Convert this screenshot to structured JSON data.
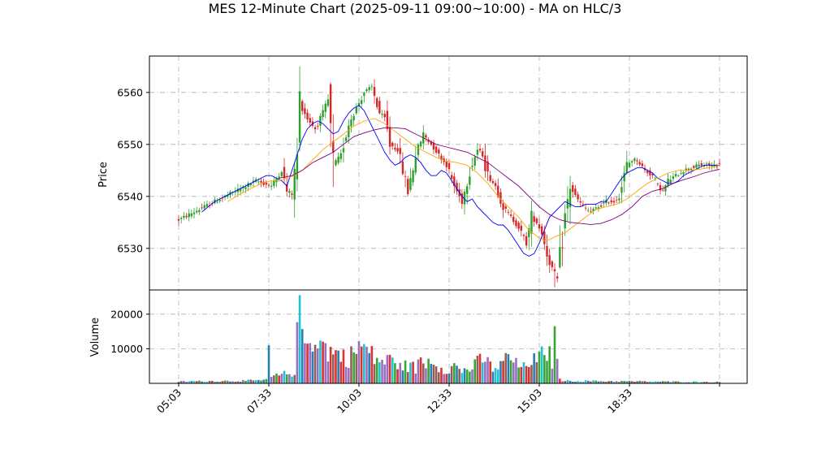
{
  "chart_data": {
    "type": "candlestick",
    "title": "MES 12-Minute Chart (2025-09-11 09:00~10:00) - MA on HLC/3",
    "panels": [
      {
        "name": "price",
        "ylabel": "Price",
        "ylim": [
          6522,
          6567
        ],
        "yticks": [
          6530,
          6540,
          6550,
          6560
        ]
      },
      {
        "name": "volume",
        "ylabel": "Volume",
        "ylim": [
          0,
          27000
        ],
        "yticks": [
          10000,
          20000
        ]
      }
    ],
    "xticks": [
      "05:03",
      "07:33",
      "10:03",
      "12:33",
      "15:03",
      "18:33"
    ],
    "grid": true,
    "colors": {
      "up": "#2ca02c",
      "down": "#d62728",
      "ma_fast": "#0000ff",
      "ma_mid": "#ffa500",
      "ma_slow": "#800080"
    },
    "price_path": [
      [
        0,
        6535.5
      ],
      [
        6,
        6537
      ],
      [
        12,
        6538.5
      ],
      [
        18,
        6540
      ],
      [
        24,
        6541.5
      ],
      [
        30,
        6543
      ],
      [
        36,
        6542
      ],
      [
        40,
        6545
      ],
      [
        42,
        6541
      ],
      [
        44,
        6540.5
      ],
      [
        46,
        6548
      ],
      [
        47,
        6558
      ],
      [
        50,
        6555
      ],
      [
        53,
        6553
      ],
      [
        56,
        6556
      ],
      [
        58,
        6558.5
      ],
      [
        60,
        6546
      ],
      [
        63,
        6548
      ],
      [
        66,
        6554
      ],
      [
        69,
        6557
      ],
      [
        72,
        6560
      ],
      [
        75,
        6561
      ],
      [
        78,
        6556
      ],
      [
        80,
        6555
      ],
      [
        82,
        6550
      ],
      [
        85,
        6549
      ],
      [
        87,
        6545
      ],
      [
        89,
        6541
      ],
      [
        92,
        6548
      ],
      [
        95,
        6552
      ],
      [
        98,
        6550
      ],
      [
        101,
        6548
      ],
      [
        104,
        6546
      ],
      [
        107,
        6542
      ],
      [
        110,
        6539
      ],
      [
        113,
        6545
      ],
      [
        116,
        6549
      ],
      [
        118,
        6548
      ],
      [
        120,
        6544
      ],
      [
        123,
        6542
      ],
      [
        126,
        6538
      ],
      [
        129,
        6536
      ],
      [
        132,
        6534
      ],
      [
        135,
        6531
      ],
      [
        137,
        6536
      ],
      [
        139,
        6535
      ],
      [
        141,
        6533
      ],
      [
        143,
        6529
      ],
      [
        145,
        6526
      ],
      [
        147,
        6524
      ],
      [
        148,
        6528
      ],
      [
        150,
        6536
      ],
      [
        152,
        6542
      ],
      [
        154,
        6540
      ],
      [
        157,
        6538
      ],
      [
        160,
        6537
      ],
      [
        163,
        6538
      ],
      [
        166,
        6539
      ],
      [
        169,
        6539
      ],
      [
        171,
        6540
      ],
      [
        174,
        6546
      ],
      [
        176,
        6547
      ],
      [
        178,
        6547
      ],
      [
        181,
        6545
      ],
      [
        184,
        6544
      ],
      [
        186,
        6542
      ],
      [
        188,
        6541
      ],
      [
        190,
        6543
      ],
      [
        193,
        6544
      ],
      [
        196,
        6545
      ],
      [
        199,
        6545.5
      ],
      [
        202,
        6546
      ],
      [
        205,
        6546
      ],
      [
        208,
        6546
      ],
      [
        210,
        6546
      ]
    ],
    "ma_fast": [
      [
        9,
        6537
      ],
      [
        14,
        6539
      ],
      [
        18,
        6540
      ],
      [
        24,
        6541.5
      ],
      [
        28,
        6542.5
      ],
      [
        32,
        6543.5
      ],
      [
        34,
        6544
      ],
      [
        36,
        6544
      ],
      [
        38,
        6543.5
      ],
      [
        40,
        6543
      ],
      [
        42,
        6542
      ],
      [
        44,
        6545
      ],
      [
        46,
        6548
      ],
      [
        48,
        6551
      ],
      [
        50,
        6553
      ],
      [
        52,
        6554
      ],
      [
        54,
        6554.5
      ],
      [
        56,
        6554
      ],
      [
        58,
        6553
      ],
      [
        60,
        6552
      ],
      [
        62,
        6552.5
      ],
      [
        64,
        6554.5
      ],
      [
        66,
        6556
      ],
      [
        68,
        6557
      ],
      [
        70,
        6557.5
      ],
      [
        72,
        6556.5
      ],
      [
        74,
        6554.5
      ],
      [
        76,
        6552.5
      ],
      [
        78,
        6550.5
      ],
      [
        80,
        6548.5
      ],
      [
        82,
        6547
      ],
      [
        84,
        6546
      ],
      [
        86,
        6546.5
      ],
      [
        88,
        6547.5
      ],
      [
        90,
        6548
      ],
      [
        92,
        6547.5
      ],
      [
        94,
        6546.5
      ],
      [
        96,
        6545
      ],
      [
        98,
        6544
      ],
      [
        100,
        6544
      ],
      [
        102,
        6545
      ],
      [
        104,
        6544.5
      ],
      [
        106,
        6543
      ],
      [
        108,
        6541.5
      ],
      [
        110,
        6540
      ],
      [
        112,
        6539
      ],
      [
        114,
        6539.5
      ],
      [
        116,
        6538
      ],
      [
        118,
        6537
      ],
      [
        120,
        6536
      ],
      [
        122,
        6535
      ],
      [
        124,
        6534.5
      ],
      [
        126,
        6534.5
      ],
      [
        128,
        6533.5
      ],
      [
        130,
        6532
      ],
      [
        132,
        6530.5
      ],
      [
        134,
        6529
      ],
      [
        136,
        6528.5
      ],
      [
        138,
        6529
      ],
      [
        140,
        6531
      ],
      [
        142,
        6533.5
      ],
      [
        144,
        6536
      ],
      [
        146,
        6537
      ],
      [
        148,
        6538
      ],
      [
        150,
        6539
      ],
      [
        152,
        6538.5
      ],
      [
        154,
        6538
      ],
      [
        156,
        6538
      ],
      [
        158,
        6538.5
      ],
      [
        160,
        6538.5
      ],
      [
        162,
        6538.5
      ],
      [
        164,
        6539
      ],
      [
        166,
        6539
      ],
      [
        168,
        6540.5
      ],
      [
        170,
        6542
      ],
      [
        172,
        6543.5
      ],
      [
        174,
        6544.5
      ],
      [
        176,
        6545
      ],
      [
        178,
        6545.5
      ],
      [
        180,
        6545.5
      ],
      [
        182,
        6545
      ],
      [
        184,
        6544.5
      ],
      [
        186,
        6543.5
      ],
      [
        188,
        6543
      ],
      [
        190,
        6542.5
      ],
      [
        192,
        6542.5
      ],
      [
        194,
        6543
      ],
      [
        196,
        6544
      ],
      [
        198,
        6544.5
      ],
      [
        200,
        6545
      ],
      [
        202,
        6545.5
      ],
      [
        204,
        6546
      ],
      [
        206,
        6546
      ],
      [
        208,
        6546
      ],
      [
        210,
        6546
      ]
    ],
    "ma_mid": [
      [
        19,
        6539
      ],
      [
        24,
        6540.5
      ],
      [
        28,
        6541.5
      ],
      [
        32,
        6542.5
      ],
      [
        36,
        6543
      ],
      [
        40,
        6543.2
      ],
      [
        44,
        6543.8
      ],
      [
        48,
        6545
      ],
      [
        52,
        6547
      ],
      [
        56,
        6549
      ],
      [
        60,
        6550.5
      ],
      [
        64,
        6552
      ],
      [
        68,
        6553.5
      ],
      [
        72,
        6554.5
      ],
      [
        76,
        6555
      ],
      [
        80,
        6554
      ],
      [
        84,
        6552.5
      ],
      [
        88,
        6551
      ],
      [
        92,
        6549.5
      ],
      [
        96,
        6548.5
      ],
      [
        100,
        6547.5
      ],
      [
        104,
        6546.8
      ],
      [
        108,
        6546.5
      ],
      [
        112,
        6546
      ],
      [
        116,
        6544.5
      ],
      [
        120,
        6542.5
      ],
      [
        124,
        6540
      ],
      [
        128,
        6538
      ],
      [
        132,
        6536
      ],
      [
        136,
        6533.5
      ],
      [
        140,
        6532
      ],
      [
        142,
        6531.5
      ],
      [
        144,
        6531.7
      ],
      [
        146,
        6532.2
      ],
      [
        150,
        6533
      ],
      [
        154,
        6534.5
      ],
      [
        158,
        6536
      ],
      [
        162,
        6537.5
      ],
      [
        166,
        6538
      ],
      [
        170,
        6538.5
      ],
      [
        174,
        6539.5
      ],
      [
        178,
        6541
      ],
      [
        182,
        6542.5
      ],
      [
        186,
        6543.5
      ],
      [
        190,
        6544.5
      ],
      [
        194,
        6545
      ],
      [
        198,
        6545
      ],
      [
        202,
        6545.2
      ],
      [
        206,
        6545.5
      ],
      [
        210,
        6546
      ]
    ],
    "ma_slow": [
      [
        39,
        6543.5
      ],
      [
        44,
        6544
      ],
      [
        48,
        6545
      ],
      [
        52,
        6546.5
      ],
      [
        56,
        6547.5
      ],
      [
        60,
        6548.5
      ],
      [
        64,
        6550
      ],
      [
        68,
        6551.5
      ],
      [
        72,
        6552.2
      ],
      [
        76,
        6552.8
      ],
      [
        80,
        6553.2
      ],
      [
        84,
        6553.2
      ],
      [
        88,
        6553
      ],
      [
        92,
        6552
      ],
      [
        96,
        6551
      ],
      [
        100,
        6550
      ],
      [
        104,
        6549.5
      ],
      [
        108,
        6549
      ],
      [
        112,
        6548.5
      ],
      [
        116,
        6547.5
      ],
      [
        120,
        6546.5
      ],
      [
        124,
        6545
      ],
      [
        128,
        6543.5
      ],
      [
        132,
        6542
      ],
      [
        136,
        6540
      ],
      [
        140,
        6538
      ],
      [
        144,
        6536.5
      ],
      [
        148,
        6535.5
      ],
      [
        152,
        6535
      ],
      [
        156,
        6534.8
      ],
      [
        160,
        6534.6
      ],
      [
        164,
        6534.8
      ],
      [
        168,
        6535.5
      ],
      [
        172,
        6536.5
      ],
      [
        176,
        6538
      ],
      [
        180,
        6540
      ],
      [
        184,
        6541
      ],
      [
        188,
        6541.5
      ],
      [
        192,
        6542.5
      ],
      [
        196,
        6543.2
      ],
      [
        200,
        6543.8
      ],
      [
        204,
        6544.5
      ],
      [
        208,
        6545
      ],
      [
        210,
        6545.2
      ]
    ],
    "volume_levels": [
      [
        0,
        600
      ],
      [
        32,
        900
      ],
      [
        34,
        1300
      ],
      [
        35,
        11000
      ],
      [
        36,
        2000
      ],
      [
        40,
        2800
      ],
      [
        45,
        3500
      ],
      [
        47,
        25500
      ],
      [
        48,
        13000
      ],
      [
        50,
        12000
      ],
      [
        53,
        16000
      ],
      [
        57,
        11000
      ],
      [
        60,
        10000
      ],
      [
        63,
        9000
      ],
      [
        66,
        8000
      ],
      [
        70,
        12000
      ],
      [
        73,
        11000
      ],
      [
        76,
        8000
      ],
      [
        80,
        7000
      ],
      [
        84,
        8000
      ],
      [
        86,
        5000
      ],
      [
        90,
        6000
      ],
      [
        92,
        4500
      ],
      [
        95,
        8500
      ],
      [
        96,
        5000
      ],
      [
        98,
        9000
      ],
      [
        100,
        6000
      ],
      [
        104,
        4500
      ],
      [
        107,
        5500
      ],
      [
        110,
        4000
      ],
      [
        114,
        5000
      ],
      [
        118,
        8000
      ],
      [
        122,
        5000
      ],
      [
        125,
        5500
      ],
      [
        128,
        9000
      ],
      [
        131,
        6000
      ],
      [
        134,
        5000
      ],
      [
        137,
        8000
      ],
      [
        139,
        6500
      ],
      [
        141,
        9000
      ],
      [
        142,
        8000
      ],
      [
        143,
        10500
      ],
      [
        145,
        7000
      ],
      [
        146,
        16500
      ],
      [
        147,
        6000
      ],
      [
        148,
        1200
      ],
      [
        151,
        800
      ],
      [
        210,
        400
      ]
    ]
  }
}
